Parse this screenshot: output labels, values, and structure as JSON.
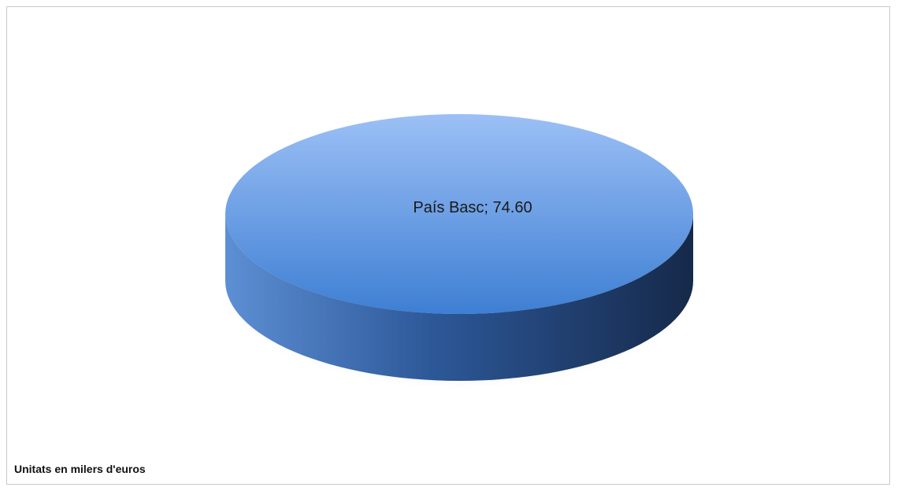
{
  "chart_data": {
    "type": "pie",
    "style": "3d",
    "slices": [
      {
        "label": "País Basc",
        "value": 74.6,
        "data_label": "País Basc; 74.60"
      }
    ],
    "colors": {
      "top_light": "#9cc0f6",
      "top_dark": "#3e7fd3",
      "side_light": "#5d8fd4",
      "side_dark": "#16294a"
    },
    "legend": "none"
  },
  "footnote": "Unitats en milers d'euros"
}
